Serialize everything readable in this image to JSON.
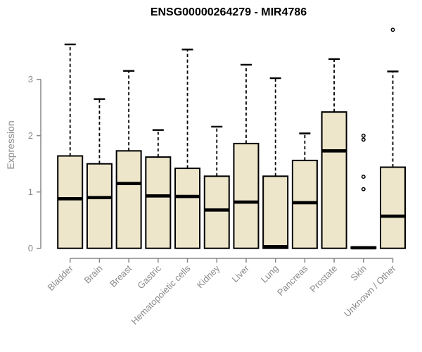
{
  "chart_data": {
    "type": "boxplot",
    "title": "ENSG00000264279 - MIR4786",
    "ylabel": "Expression",
    "xlabel": "",
    "yticks": [
      0,
      1,
      2,
      3
    ],
    "ylim": [
      0,
      3.95
    ],
    "grid": false,
    "x_label_rotation": 45,
    "categories": [
      "Bladder",
      "Brain",
      "Breast",
      "Gastric",
      "Hematopoietic cells",
      "Kidney",
      "Liver",
      "Lung",
      "Pancreas",
      "Prostate",
      "Skin",
      "Unknown / Other"
    ],
    "series": [
      {
        "category": "Bladder",
        "whisker_low": 0,
        "q1": 0,
        "median": 0.88,
        "q3": 1.64,
        "whisker_high": 3.62,
        "outliers": []
      },
      {
        "category": "Brain",
        "whisker_low": 0,
        "q1": 0,
        "median": 0.9,
        "q3": 1.5,
        "whisker_high": 2.65,
        "outliers": []
      },
      {
        "category": "Breast",
        "whisker_low": 0,
        "q1": 0,
        "median": 1.15,
        "q3": 1.73,
        "whisker_high": 3.15,
        "outliers": []
      },
      {
        "category": "Gastric",
        "whisker_low": 0,
        "q1": 0,
        "median": 0.93,
        "q3": 1.62,
        "whisker_high": 2.1,
        "outliers": []
      },
      {
        "category": "Hematopoietic cells",
        "whisker_low": 0,
        "q1": 0,
        "median": 0.92,
        "q3": 1.42,
        "whisker_high": 3.53,
        "outliers": []
      },
      {
        "category": "Kidney",
        "whisker_low": 0,
        "q1": 0,
        "median": 0.68,
        "q3": 1.28,
        "whisker_high": 2.16,
        "outliers": []
      },
      {
        "category": "Liver",
        "whisker_low": 0,
        "q1": 0,
        "median": 0.82,
        "q3": 1.86,
        "whisker_high": 3.26,
        "outliers": []
      },
      {
        "category": "Lung",
        "whisker_low": 0,
        "q1": 0,
        "median": 0.03,
        "q3": 1.28,
        "whisker_high": 3.02,
        "outliers": []
      },
      {
        "category": "Pancreas",
        "whisker_low": 0,
        "q1": 0,
        "median": 0.81,
        "q3": 1.56,
        "whisker_high": 2.04,
        "outliers": []
      },
      {
        "category": "Prostate",
        "whisker_low": 0,
        "q1": 0,
        "median": 1.73,
        "q3": 2.42,
        "whisker_high": 3.36,
        "outliers": []
      },
      {
        "category": "Skin",
        "whisker_low": 0,
        "q1": 0,
        "median": 0.01,
        "q3": 0.02,
        "whisker_high": 0.02,
        "outliers": [
          1.05,
          1.27,
          1.93,
          2.0
        ]
      },
      {
        "category": "Unknown / Other",
        "whisker_low": 0,
        "q1": 0,
        "median": 0.57,
        "q3": 1.44,
        "whisker_high": 3.14,
        "outliers": [
          3.88
        ]
      }
    ],
    "colors": {
      "box_fill": "#EDE6CB",
      "box_border": "#000000",
      "median": "#000000",
      "whisker": "#000000",
      "axis": "#878787",
      "tick_label": "#8a8a8a",
      "title": "#000000",
      "background": "#ffffff"
    }
  }
}
